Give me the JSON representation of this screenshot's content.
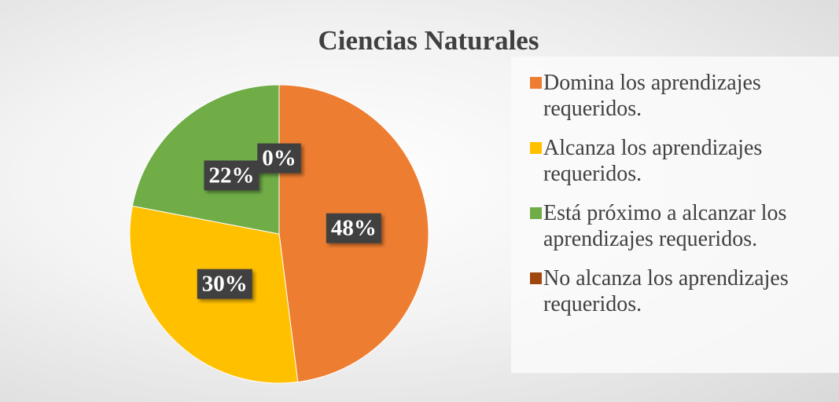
{
  "chart_data": {
    "type": "pie",
    "title": "Ciencias Naturales",
    "categories": [
      "Domina los aprendizajes requeridos.",
      "Alcanza los aprendizajes requeridos.",
      "Está próximo a alcanzar los aprendizajes requeridos.",
      "No alcanza los aprendizajes requeridos."
    ],
    "values": [
      48,
      30,
      22,
      0
    ],
    "value_labels": [
      "48%",
      "30%",
      "22%",
      "0%"
    ],
    "colors": [
      "#ed7d31",
      "#ffc000",
      "#70ad47",
      "#9e480e"
    ],
    "legend": "right"
  }
}
